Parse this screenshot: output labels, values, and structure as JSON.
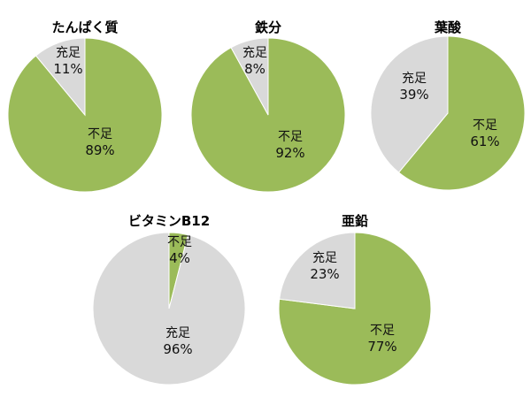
{
  "chart_data": [
    {
      "type": "pie",
      "title": "たんぱく質",
      "slices": [
        {
          "name": "不足",
          "label": "不足",
          "value": 89,
          "display": "89%",
          "color": "#9bbb59"
        },
        {
          "name": "充足",
          "label": "充足",
          "value": 11,
          "display": "11%",
          "color": "#d9d9d9"
        }
      ]
    },
    {
      "type": "pie",
      "title": "鉄分",
      "slices": [
        {
          "name": "不足",
          "label": "不足",
          "value": 92,
          "display": "92%",
          "color": "#9bbb59"
        },
        {
          "name": "充足",
          "label": "充足",
          "value": 8,
          "display": "8%",
          "color": "#d9d9d9"
        }
      ]
    },
    {
      "type": "pie",
      "title": "葉酸",
      "slices": [
        {
          "name": "不足",
          "label": "不足",
          "value": 61,
          "display": "61%",
          "color": "#9bbb59"
        },
        {
          "name": "充足",
          "label": "充足",
          "value": 39,
          "display": "39%",
          "color": "#d9d9d9"
        }
      ]
    },
    {
      "type": "pie",
      "title": "ビタミンB12",
      "slices": [
        {
          "name": "不足",
          "label": "不足",
          "value": 4,
          "display": "4%",
          "color": "#9bbb59"
        },
        {
          "name": "充足",
          "label": "充足",
          "value": 96,
          "display": "96%",
          "color": "#d9d9d9"
        }
      ]
    },
    {
      "type": "pie",
      "title": "亜鉛",
      "slices": [
        {
          "name": "不足",
          "label": "不足",
          "value": 77,
          "display": "77%",
          "color": "#9bbb59"
        },
        {
          "name": "充足",
          "label": "充足",
          "value": 23,
          "display": "23%",
          "color": "#d9d9d9"
        }
      ]
    }
  ]
}
